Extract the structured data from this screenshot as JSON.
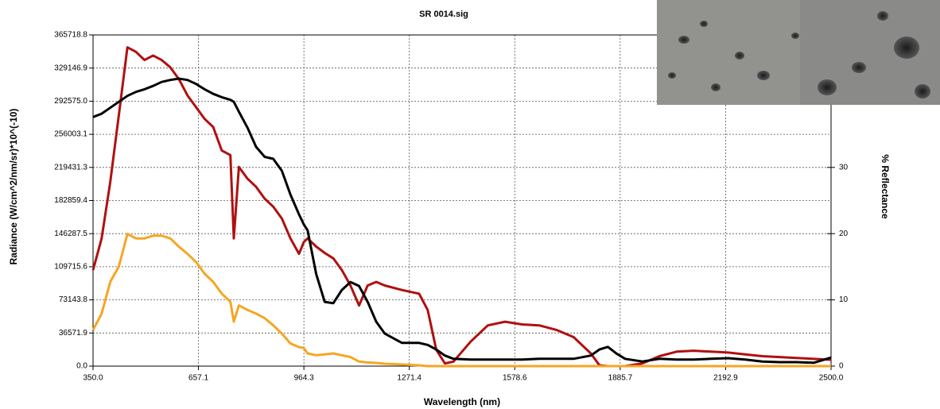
{
  "chart_data": {
    "type": "line",
    "title": "SR 0014.sig",
    "x_label": "Wavelength (nm)",
    "y_label": "Radiance (W/cm^2/nm/sr)*10^(-10)",
    "y2_label": "% Reflectance",
    "x": [
      350,
      375,
      400,
      425,
      450,
      475,
      500,
      525,
      550,
      575,
      600,
      625,
      650,
      675,
      700,
      725,
      750,
      760,
      775,
      800,
      825,
      850,
      875,
      900,
      925,
      950,
      964,
      975,
      1000,
      1025,
      1050,
      1075,
      1100,
      1125,
      1150,
      1175,
      1200,
      1250,
      1300,
      1325,
      1350,
      1375,
      1400,
      1450,
      1500,
      1550,
      1600,
      1650,
      1700,
      1750,
      1800,
      1825,
      1850,
      1875,
      1900,
      1950,
      2000,
      2050,
      2100,
      2150,
      2200,
      2250,
      2300,
      2350,
      2400,
      2450,
      2500
    ],
    "series": [
      {
        "color": "#b01010",
        "values": [
          106000,
          141000,
          203000,
          277000,
          352000,
          347000,
          338000,
          343000,
          338000,
          330000,
          317000,
          299000,
          286000,
          273000,
          264000,
          238000,
          233000,
          141000,
          220000,
          207000,
          198000,
          185000,
          176000,
          163000,
          141000,
          124000,
          137000,
          141000,
          132000,
          125000,
          119000,
          106000,
          89000,
          67000,
          89000,
          93000,
          89000,
          84000,
          80000,
          62000,
          18000,
          3000,
          5000,
          27000,
          45000,
          49000,
          46000,
          45000,
          40000,
          32000,
          14000,
          1000,
          0,
          0,
          0,
          3000,
          11000,
          16000,
          17000,
          16000,
          15000,
          13000,
          11000,
          10000,
          9000,
          8000,
          7000
        ]
      },
      {
        "color": "#f5a623",
        "values": [
          40000,
          58000,
          93000,
          110000,
          146000,
          141000,
          141000,
          144000,
          144000,
          141000,
          132000,
          124000,
          115000,
          102000,
          93000,
          80000,
          71000,
          49000,
          67000,
          62000,
          58000,
          53000,
          45000,
          36000,
          25000,
          21000,
          20000,
          14000,
          12000,
          13000,
          14000,
          12000,
          10000,
          5000,
          4000,
          3500,
          2600,
          1800,
          900,
          0,
          0,
          0,
          0,
          0,
          0,
          0,
          0,
          0,
          0,
          0,
          0,
          0,
          0,
          0,
          0,
          0,
          0,
          0,
          0,
          0,
          0,
          0,
          0,
          0,
          0,
          0,
          0
        ]
      },
      {
        "color": "#000000",
        "axis": "y2",
        "values": [
          37.6,
          38.1,
          39.0,
          39.9,
          40.8,
          41.4,
          41.8,
          42.3,
          42.9,
          43.2,
          43.4,
          43.2,
          42.6,
          41.8,
          41.1,
          40.6,
          40.2,
          39.9,
          38.4,
          36.0,
          33.1,
          31.6,
          31.3,
          29.5,
          25.9,
          22.9,
          21.4,
          20.5,
          13.9,
          9.7,
          9.5,
          11.5,
          12.7,
          12.1,
          9.7,
          6.7,
          4.9,
          3.5,
          3.5,
          3.2,
          2.5,
          1.6,
          1.1,
          1.0,
          1.0,
          1.0,
          1.0,
          1.1,
          1.1,
          1.1,
          1.6,
          2.5,
          2.9,
          1.9,
          1.1,
          0.7,
          1.1,
          1.0,
          1.0,
          1.1,
          1.2,
          1.0,
          0.7,
          0.6,
          0.6,
          0.5,
          1.3
        ]
      }
    ],
    "xlim": [
      350,
      2500
    ],
    "xticks": [
      {
        "value": 350,
        "label": "350.0"
      },
      657.1,
      964.3,
      1271.4,
      1578.6,
      1885.7,
      2192.9,
      {
        "value": 2500,
        "label": "2500.0"
      }
    ],
    "ylim": [
      0,
      365718.8
    ],
    "yticks": [
      {
        "value": 0,
        "label": "0.0"
      },
      36571.9,
      73143.8,
      109715.6,
      146287.5,
      182859.4,
      219431.3,
      256003.1,
      {
        "value": 292575,
        "label": "292575.0"
      },
      329146.9,
      365718.8
    ],
    "y2lim": [
      0,
      50
    ],
    "y2ticks": [
      0,
      10,
      20,
      30
    ],
    "grid": true
  }
}
